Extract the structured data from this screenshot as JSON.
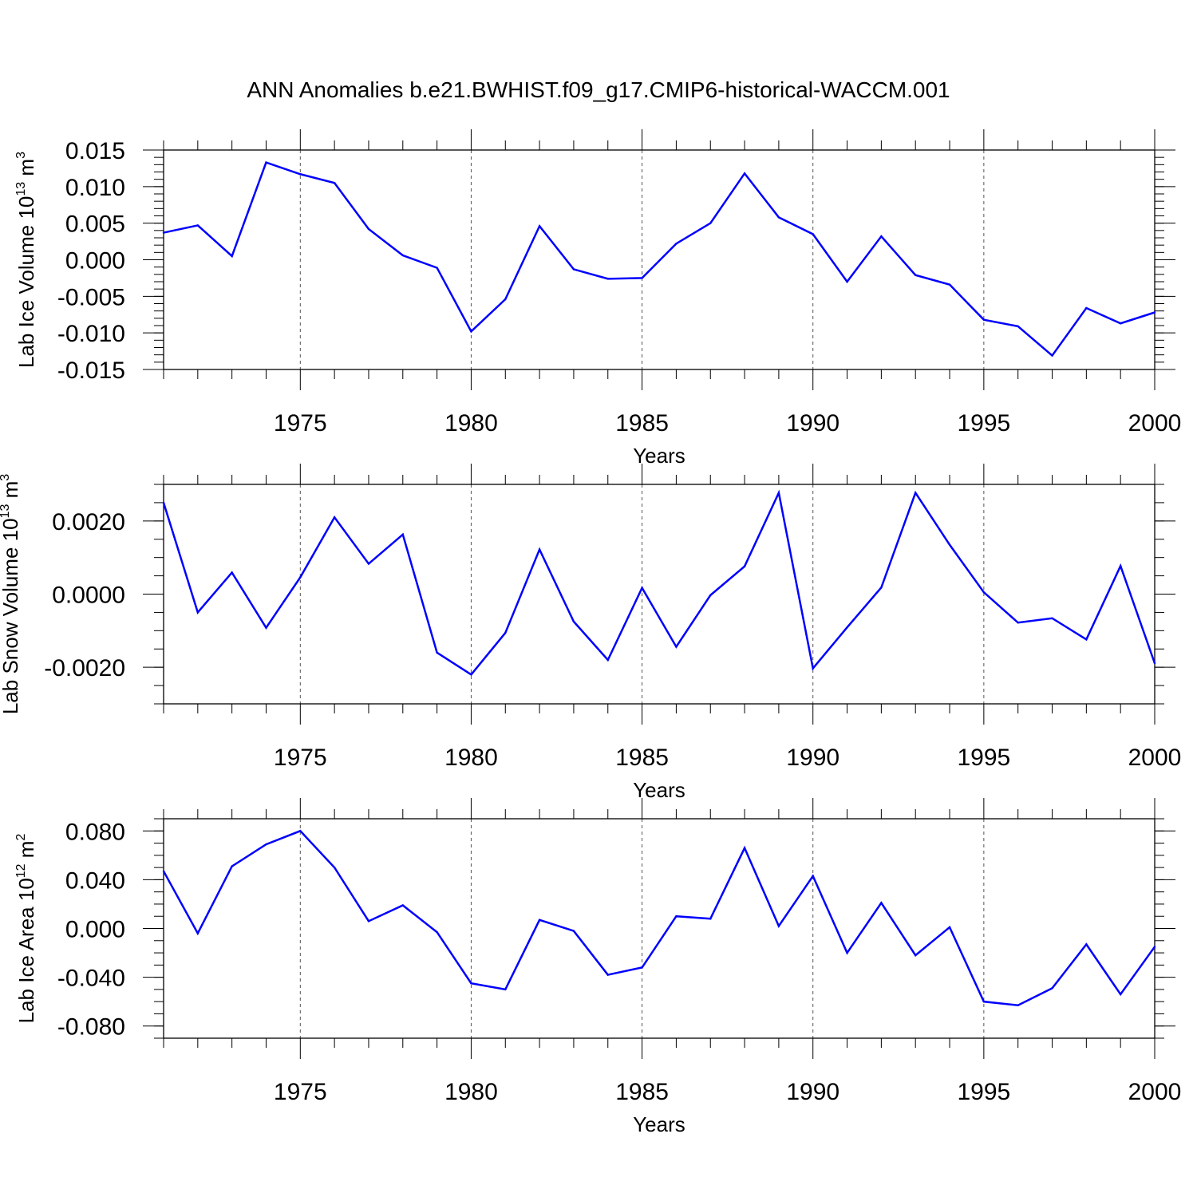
{
  "figure_title": "ANN Anomalies b.e21.BWHIST.f09_g17.CMIP6-historical-WACCM.001",
  "colors": {
    "series": "#0000ff",
    "axis": "#000000",
    "grid": "#555555"
  },
  "chart_data": [
    {
      "type": "line",
      "title": "",
      "ylabel_prefix": "Lab Ice Volume 10",
      "ylabel_exp": "13",
      "ylabel_unit": " m",
      "ylabel_unit_exp": "3",
      "xlabel": "Years",
      "xlim": [
        1971,
        2000
      ],
      "ylim": [
        -0.015,
        0.015
      ],
      "grid": "dashed vertical at major x ticks",
      "x_ticks": [
        1975,
        1980,
        1985,
        1990,
        1995,
        2000
      ],
      "x_tick_labels": [
        "1975",
        "1980",
        "1985",
        "1990",
        "1995",
        "2000"
      ],
      "y_ticks": [
        -0.015,
        -0.01,
        -0.005,
        0.0,
        0.005,
        0.01,
        0.015
      ],
      "y_tick_labels": [
        "-0.015",
        "-0.010",
        "-0.005",
        "0.000",
        "0.005",
        "0.010",
        "0.015"
      ],
      "y_minor_step": 0.001,
      "x": [
        1971,
        1972,
        1973,
        1974,
        1975,
        1976,
        1977,
        1978,
        1979,
        1980,
        1981,
        1982,
        1983,
        1984,
        1985,
        1986,
        1987,
        1988,
        1989,
        1990,
        1991,
        1992,
        1993,
        1994,
        1995,
        1996,
        1997,
        1998,
        1999,
        2000
      ],
      "series": [
        {
          "name": "Lab Ice Volume",
          "values": [
            0.0037,
            0.0047,
            0.0005,
            0.0133,
            0.0117,
            0.0105,
            0.0042,
            0.0006,
            -0.0011,
            -0.0098,
            -0.0054,
            0.0046,
            -0.0013,
            -0.0026,
            -0.0025,
            0.0022,
            0.005,
            0.0118,
            0.0058,
            0.0035,
            -0.003,
            0.0032,
            -0.0021,
            -0.0034,
            -0.0082,
            -0.0091,
            -0.0131,
            -0.0066,
            -0.0087,
            -0.0072
          ]
        }
      ]
    },
    {
      "type": "line",
      "title": "",
      "ylabel_prefix": "Lab Snow Volume 10",
      "ylabel_exp": "13",
      "ylabel_unit": " m",
      "ylabel_unit_exp": "3",
      "xlabel": "Years",
      "xlim": [
        1971,
        2000
      ],
      "ylim": [
        -0.003,
        0.003
      ],
      "grid": "dashed vertical at major x ticks",
      "x_ticks": [
        1975,
        1980,
        1985,
        1990,
        1995,
        2000
      ],
      "x_tick_labels": [
        "1975",
        "1980",
        "1985",
        "1990",
        "1995",
        "2000"
      ],
      "y_ticks": [
        -0.002,
        0.0,
        0.002
      ],
      "y_tick_labels": [
        "-0.0020",
        "0.0000",
        "0.0020"
      ],
      "y_minor_step": 0.0005,
      "x": [
        1971,
        1972,
        1973,
        1974,
        1975,
        1976,
        1977,
        1978,
        1979,
        1980,
        1981,
        1982,
        1983,
        1984,
        1985,
        1986,
        1987,
        1988,
        1989,
        1990,
        1991,
        1992,
        1993,
        1994,
        1995,
        1996,
        1997,
        1998,
        1999,
        2000
      ],
      "series": [
        {
          "name": "Lab Snow Volume",
          "values": [
            0.0025,
            -0.0005,
            0.00059,
            -0.00092,
            0.00046,
            0.0021,
            0.00083,
            0.00163,
            -0.0016,
            -0.0022,
            -0.00106,
            0.00122,
            -0.00075,
            -0.0018,
            0.00017,
            -0.00144,
            -3e-05,
            0.00076,
            0.00277,
            -0.00203,
            -0.00091,
            0.00018,
            0.00277,
            0.00135,
            5e-05,
            -0.00078,
            -0.00066,
            -0.00124,
            0.00077,
            -0.00189
          ]
        }
      ]
    },
    {
      "type": "line",
      "title": "",
      "ylabel_prefix": "Lab Ice Area 10",
      "ylabel_exp": "12",
      "ylabel_unit": " m",
      "ylabel_unit_exp": "2",
      "xlabel": "Years",
      "xlim": [
        1971,
        2000
      ],
      "ylim": [
        -0.09,
        0.09
      ],
      "grid": "dashed vertical at major x ticks",
      "x_ticks": [
        1975,
        1980,
        1985,
        1990,
        1995,
        2000
      ],
      "x_tick_labels": [
        "1975",
        "1980",
        "1985",
        "1990",
        "1995",
        "2000"
      ],
      "y_ticks": [
        -0.08,
        -0.04,
        0.0,
        0.04,
        0.08
      ],
      "y_tick_labels": [
        "-0.080",
        "-0.040",
        "0.000",
        "0.040",
        "0.080"
      ],
      "y_minor_step": 0.01,
      "x": [
        1971,
        1972,
        1973,
        1974,
        1975,
        1976,
        1977,
        1978,
        1979,
        1980,
        1981,
        1982,
        1983,
        1984,
        1985,
        1986,
        1987,
        1988,
        1989,
        1990,
        1991,
        1992,
        1993,
        1994,
        1995,
        1996,
        1997,
        1998,
        1999,
        2000
      ],
      "series": [
        {
          "name": "Lab Ice Area",
          "values": [
            0.047,
            -0.004,
            0.051,
            0.069,
            0.08,
            0.05,
            0.006,
            0.019,
            -0.003,
            -0.045,
            -0.05,
            0.007,
            -0.002,
            -0.038,
            -0.032,
            0.01,
            0.008,
            0.066,
            0.002,
            0.043,
            -0.02,
            0.021,
            -0.022,
            0.001,
            -0.06,
            -0.063,
            -0.049,
            -0.013,
            -0.054,
            -0.015
          ]
        }
      ]
    }
  ]
}
